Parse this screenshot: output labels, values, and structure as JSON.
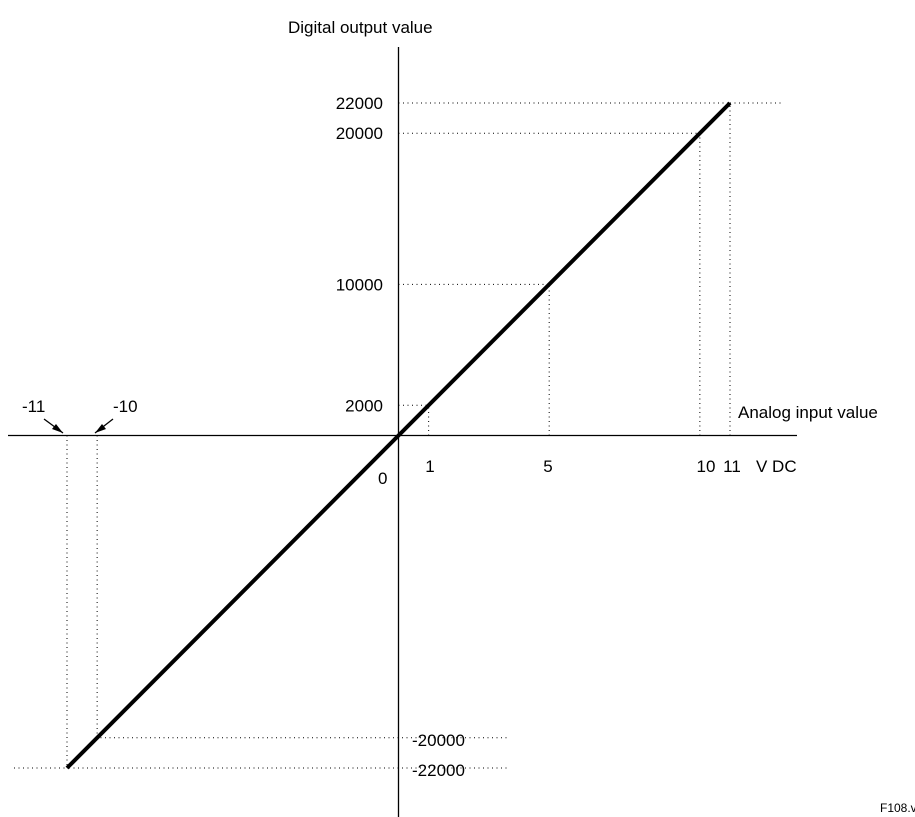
{
  "chart_data": {
    "type": "line",
    "xlabel": "Analog input value",
    "ylabel": "Digital output value",
    "x_unit": "V DC",
    "origin_label": "0",
    "figure_code": "F108.v",
    "xlim": [
      -11,
      11
    ],
    "ylim": [
      -22000,
      22000
    ],
    "x_ticks": [
      {
        "value": -11,
        "label": "-11"
      },
      {
        "value": -10,
        "label": "-10"
      },
      {
        "value": 1,
        "label": "1"
      },
      {
        "value": 5,
        "label": "5"
      },
      {
        "value": 10,
        "label": "10"
      },
      {
        "value": 11,
        "label": "11"
      }
    ],
    "y_ticks": [
      {
        "value": 22000,
        "label": "22000"
      },
      {
        "value": 20000,
        "label": "20000"
      },
      {
        "value": 10000,
        "label": "10000"
      },
      {
        "value": 2000,
        "label": "2000"
      },
      {
        "value": -20000,
        "label": "-20000"
      },
      {
        "value": -22000,
        "label": "-22000"
      }
    ],
    "series": [
      {
        "x": [
          -11,
          11
        ],
        "y": [
          -22000,
          22000
        ]
      }
    ],
    "grid": false
  }
}
